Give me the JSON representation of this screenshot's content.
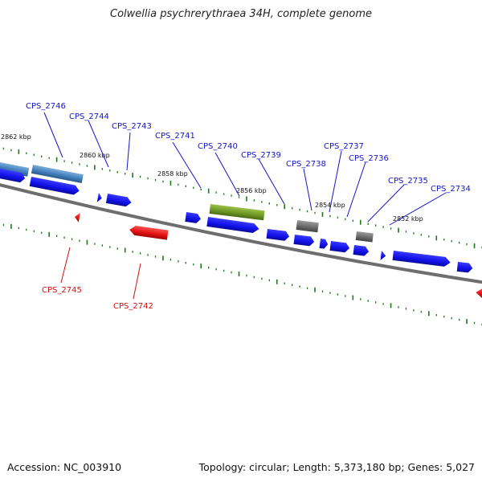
{
  "title": "Colwellia psychrerythraea 34H, complete genome",
  "accession_label": "Accession: NC_003910",
  "summary_label": "Topology: circular; Length: 5,373,180 bp; Genes: 5,027",
  "scale_labels": [
    "2862 kbp",
    "2860 kbp",
    "2858 kbp",
    "2856 kbp",
    "2854 kbp",
    "2852 kbp"
  ],
  "forward_gene_labels": [
    "CPS_2746",
    "CPS_2744",
    "CPS_2743",
    "CPS_2741",
    "CPS_2740",
    "CPS_2739",
    "CPS_2738",
    "CPS_2737",
    "CPS_2736",
    "CPS_2735",
    "CPS_2734"
  ],
  "reverse_gene_labels": [
    "CPS_2745",
    "CPS_2742"
  ],
  "colors": {
    "cds": "#1a1af0",
    "gene_steelblue": "#4a84c0",
    "gene_olive": "#6f9a2a",
    "gene_gray": "#6a6a6a",
    "reverse_gene": "#e81414",
    "genome_line": "#7a7a7a",
    "tick": "#1a7a1a",
    "forward_label": "#1515c8",
    "reverse_label": "#d01010"
  }
}
